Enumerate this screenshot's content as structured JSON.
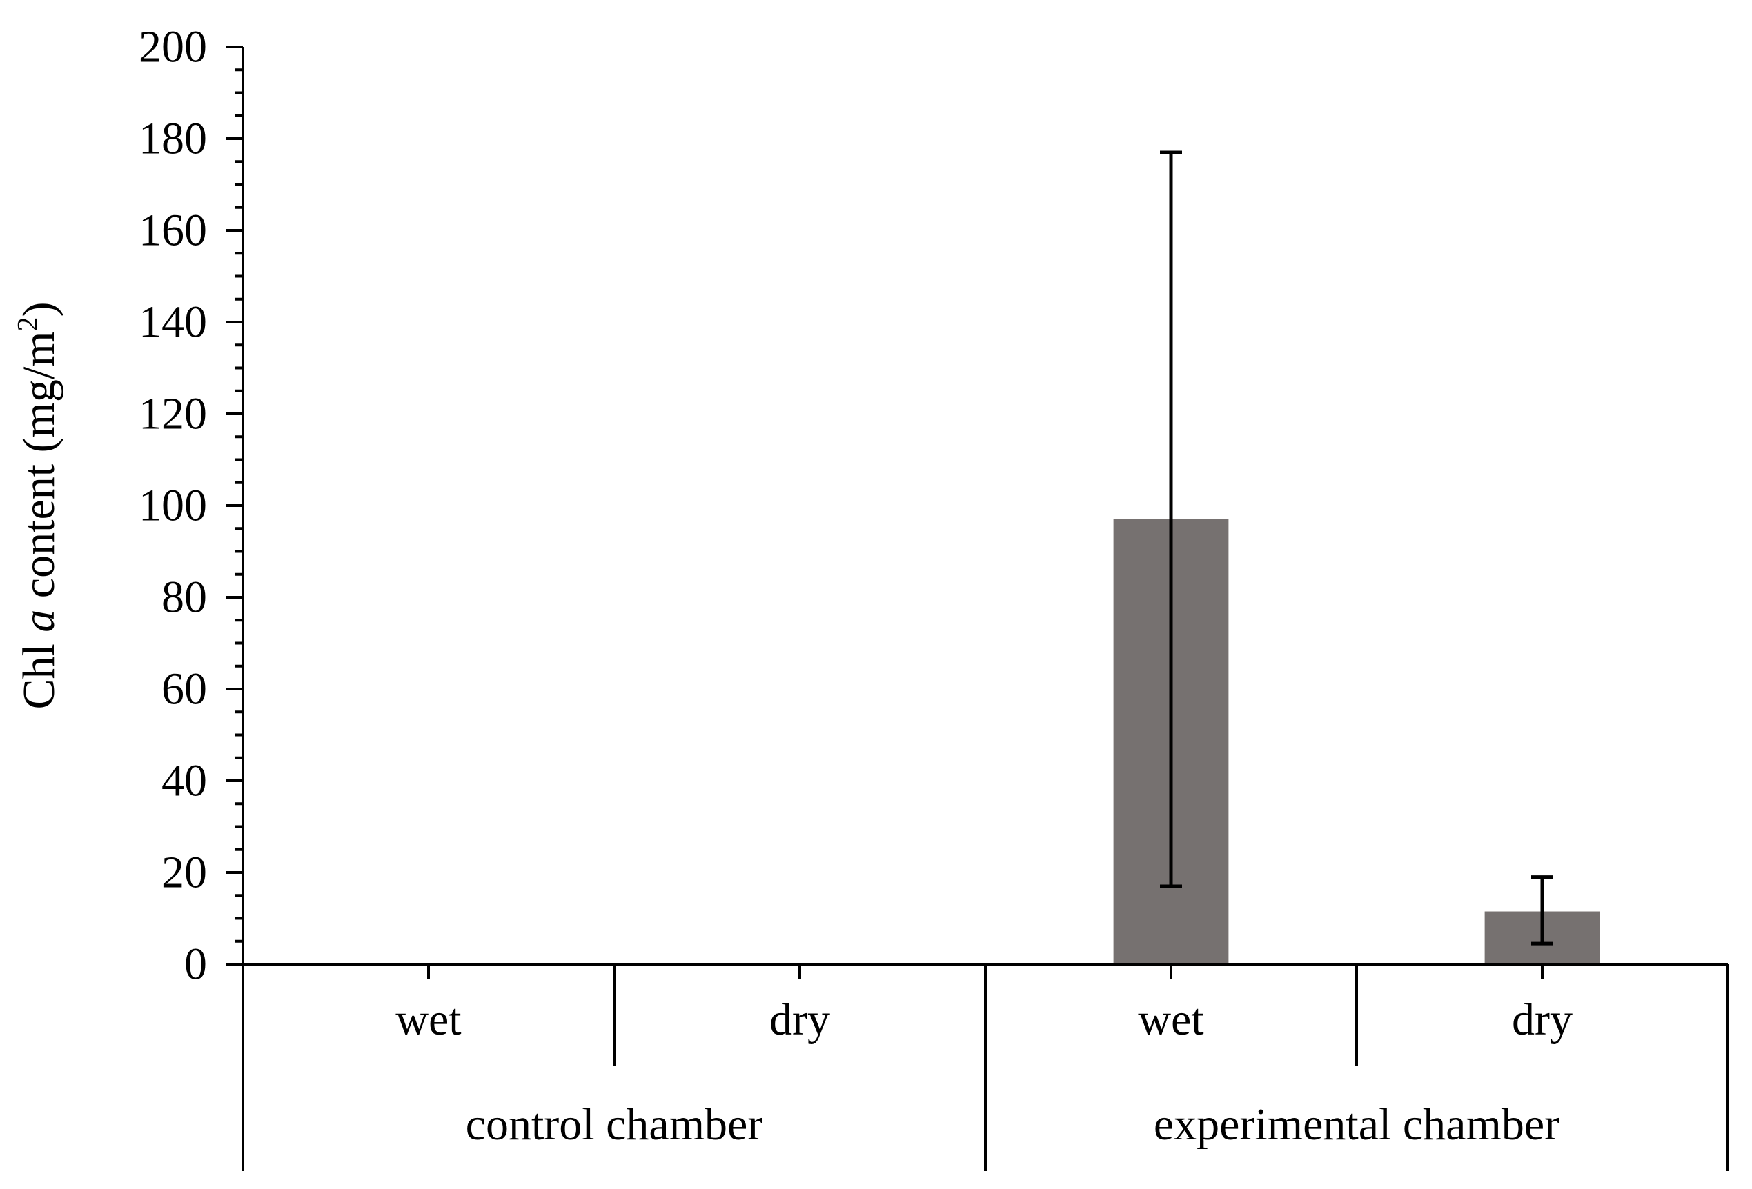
{
  "chart_data": {
    "type": "bar",
    "ylabel": {
      "prefix": "Chl ",
      "italic": "a",
      "middle": " content (mg/m",
      "superscript": "2",
      "suffix": ")"
    },
    "ylim": [
      0,
      200
    ],
    "y_major_ticks": [
      0,
      20,
      40,
      60,
      80,
      100,
      120,
      140,
      160,
      180,
      200
    ],
    "y_tick_labels": [
      "0",
      "20",
      "40",
      "60",
      "80",
      "100",
      "120",
      "140",
      "160",
      "180",
      "200"
    ],
    "y_minor_step": 5,
    "groups": [
      "control chamber",
      "experimental chamber"
    ],
    "categories": [
      "wet",
      "dry",
      "wet",
      "dry"
    ],
    "group_of_category": [
      0,
      0,
      1,
      1
    ],
    "values": [
      0,
      0,
      97,
      11.5
    ],
    "error_low": [
      null,
      null,
      17,
      4.5
    ],
    "error_high": [
      null,
      null,
      177,
      19
    ],
    "bar_color": "#767170",
    "grid": false,
    "legend": "none"
  }
}
